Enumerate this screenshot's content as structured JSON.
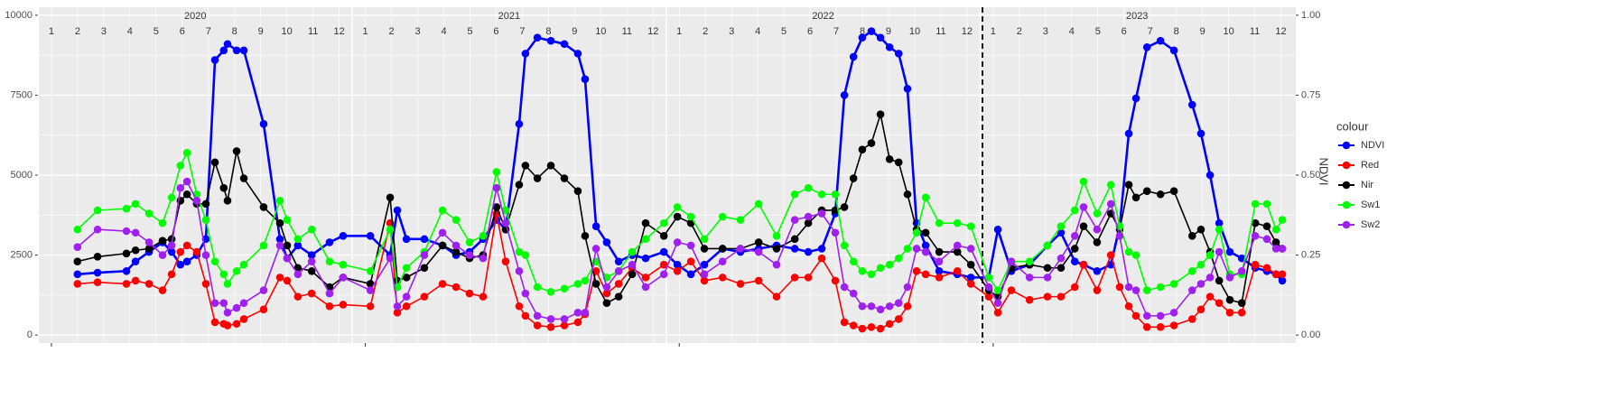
{
  "chart_data": {
    "type": "line",
    "x": [
      2020.083,
      2020.147,
      2020.239,
      2020.268,
      2020.311,
      2020.354,
      2020.383,
      2020.411,
      2020.432,
      2020.463,
      2020.492,
      2020.521,
      2020.549,
      2020.561,
      2020.59,
      2020.613,
      2020.676,
      2020.728,
      2020.751,
      2020.785,
      2020.829,
      2020.886,
      2020.929,
      2021.016,
      2021.079,
      2021.102,
      2021.131,
      2021.188,
      2021.246,
      2021.289,
      2021.332,
      2021.375,
      2021.418,
      2021.447,
      2021.49,
      2021.51,
      2021.548,
      2021.591,
      2021.634,
      2021.677,
      2021.7,
      2021.735,
      2021.769,
      2021.807,
      2021.85,
      2021.893,
      2021.951,
      2021.994,
      2022.037,
      2022.08,
      2022.138,
      2022.195,
      2022.253,
      2022.31,
      2022.368,
      2022.411,
      2022.454,
      2022.497,
      2022.526,
      2022.555,
      2022.583,
      2022.612,
      2022.641,
      2022.67,
      2022.699,
      2022.727,
      2022.756,
      2022.785,
      2022.828,
      2022.886,
      2022.929,
      2022.986,
      2023.015,
      2023.058,
      2023.116,
      2023.173,
      2023.216,
      2023.26,
      2023.288,
      2023.331,
      2023.375,
      2023.403,
      2023.432,
      2023.455,
      2023.49,
      2023.533,
      2023.576,
      2023.634,
      2023.662,
      2023.691,
      2023.72,
      2023.754,
      2023.792,
      2023.835,
      2023.872,
      2023.901,
      2023.921
    ],
    "series": [
      {
        "name": "NDVI",
        "color": "#0000ff",
        "axis": "y2",
        "values": [
          0.19,
          0.195,
          0.2,
          0.23,
          0.26,
          0.29,
          0.26,
          0.22,
          0.23,
          0.25,
          0.3,
          0.86,
          0.89,
          0.91,
          0.89,
          0.89,
          0.66,
          0.3,
          0.24,
          0.28,
          0.25,
          0.29,
          0.31,
          0.31,
          0.25,
          0.39,
          0.3,
          0.3,
          0.28,
          0.25,
          0.26,
          0.3,
          0.36,
          0.33,
          0.66,
          0.88,
          0.93,
          0.92,
          0.91,
          0.88,
          0.8,
          0.34,
          0.29,
          0.23,
          0.25,
          0.24,
          0.26,
          0.22,
          0.19,
          0.22,
          0.27,
          0.26,
          0.27,
          0.28,
          0.27,
          0.26,
          0.27,
          0.38,
          0.75,
          0.87,
          0.93,
          0.95,
          0.93,
          0.9,
          0.88,
          0.77,
          0.35,
          0.28,
          0.2,
          0.19,
          0.18,
          0.18,
          0.33,
          0.2,
          0.22,
          0.28,
          0.32,
          0.23,
          0.22,
          0.2,
          0.22,
          0.34,
          0.63,
          0.74,
          0.9,
          0.92,
          0.89,
          0.72,
          0.63,
          0.5,
          0.35,
          0.26,
          0.24,
          0.21,
          0.2,
          0.19,
          0.17
        ]
      },
      {
        "name": "Red",
        "color": "#ff0000",
        "values": [
          1600,
          1650,
          1600,
          1700,
          1600,
          1400,
          1900,
          2600,
          2800,
          2600,
          1600,
          400,
          350,
          300,
          350,
          500,
          800,
          1800,
          1700,
          1200,
          1300,
          900,
          950,
          900,
          3500,
          700,
          900,
          1200,
          1600,
          1500,
          1300,
          1200,
          3800,
          2300,
          900,
          600,
          300,
          250,
          300,
          400,
          650,
          2000,
          1300,
          1600,
          2100,
          1800,
          2200,
          2000,
          2300,
          1700,
          1800,
          1600,
          1700,
          1200,
          1800,
          1800,
          2400,
          1700,
          400,
          300,
          200,
          250,
          200,
          350,
          500,
          900,
          2000,
          1900,
          1800,
          2000,
          1600,
          1200,
          700,
          1400,
          1100,
          1200,
          1200,
          1500,
          2200,
          1400,
          2500,
          1500,
          900,
          600,
          250,
          250,
          300,
          500,
          800,
          1200,
          1000,
          700,
          700,
          2200,
          2100,
          1900,
          1900
        ]
      },
      {
        "name": "Nir",
        "color": "#000000",
        "values": [
          2300,
          2450,
          2550,
          2650,
          2700,
          2950,
          3000,
          4200,
          4400,
          4100,
          4100,
          5400,
          4600,
          4200,
          5750,
          4900,
          4000,
          3500,
          2800,
          2100,
          2000,
          1500,
          1800,
          1600,
          4300,
          1700,
          1800,
          2100,
          2800,
          2600,
          2400,
          2500,
          4000,
          3300,
          4700,
          5300,
          4900,
          5300,
          4900,
          4500,
          3100,
          1600,
          1000,
          1200,
          1900,
          3500,
          3100,
          3700,
          3500,
          2700,
          2700,
          2700,
          2900,
          2700,
          3000,
          3500,
          3900,
          3900,
          4000,
          4900,
          5800,
          6000,
          6900,
          5500,
          5400,
          4400,
          3300,
          3200,
          2600,
          2600,
          2200,
          1400,
          1200,
          2100,
          2200,
          2100,
          2100,
          2700,
          3400,
          2900,
          3800,
          3300,
          4700,
          4300,
          4500,
          4400,
          4500,
          3100,
          3300,
          2600,
          1700,
          1100,
          1000,
          3500,
          3400,
          2900,
          2700
        ]
      },
      {
        "name": "Sw1",
        "color": "#00ff00",
        "values": [
          3300,
          3900,
          3950,
          4100,
          3800,
          3500,
          4300,
          5300,
          5700,
          4400,
          3600,
          2300,
          1900,
          1600,
          2000,
          2200,
          2800,
          4200,
          3600,
          3000,
          3300,
          2300,
          2200,
          2000,
          3300,
          1500,
          2100,
          2600,
          3900,
          3600,
          2900,
          3100,
          5100,
          3900,
          2600,
          2500,
          1500,
          1350,
          1450,
          1600,
          1700,
          2300,
          1800,
          2000,
          2600,
          3000,
          3500,
          4000,
          3700,
          3000,
          3700,
          3600,
          4100,
          3100,
          4400,
          4600,
          4400,
          4400,
          2800,
          2300,
          2000,
          1900,
          2100,
          2200,
          2400,
          2700,
          3200,
          4300,
          3500,
          3500,
          3400,
          1800,
          1400,
          2300,
          2300,
          2800,
          3400,
          3900,
          4800,
          3800,
          4700,
          3400,
          2600,
          2500,
          1400,
          1500,
          1600,
          2000,
          2200,
          2500,
          3300,
          1900,
          1900,
          4100,
          4100,
          3300,
          3600
        ]
      },
      {
        "name": "Sw2",
        "color": "#a020f0",
        "values": [
          2750,
          3300,
          3250,
          3200,
          2900,
          2500,
          2800,
          4600,
          4800,
          4200,
          2500,
          1000,
          1000,
          700,
          850,
          1000,
          1400,
          2800,
          2400,
          1900,
          2300,
          1300,
          1800,
          1400,
          2400,
          900,
          1200,
          2500,
          3200,
          2800,
          2500,
          2400,
          4600,
          3500,
          2000,
          1300,
          600,
          500,
          500,
          700,
          700,
          2700,
          1500,
          2000,
          2200,
          1500,
          1900,
          2900,
          2800,
          1900,
          2300,
          2700,
          2600,
          2200,
          3600,
          3700,
          3800,
          3200,
          1500,
          1300,
          900,
          900,
          800,
          900,
          1000,
          1500,
          2700,
          2600,
          2300,
          2800,
          2700,
          1500,
          1000,
          2300,
          1800,
          1800,
          2400,
          3100,
          4000,
          3300,
          4100,
          3100,
          1500,
          1400,
          600,
          600,
          700,
          1400,
          1600,
          1800,
          2600,
          1800,
          2000,
          3100,
          3000,
          2700,
          2700
        ]
      }
    ],
    "xlim": [
      2019.957,
      2023.964
    ],
    "xticks": [
      2020,
      2021,
      2022,
      2023
    ],
    "months": [
      1,
      2,
      3,
      4,
      5,
      6,
      7,
      8,
      9,
      10,
      11,
      12
    ],
    "ylim": [
      -250,
      10250
    ],
    "yticks": [
      0,
      2500,
      5000,
      7500,
      10000
    ],
    "y2lim": [
      -0.025,
      1.025
    ],
    "y2ticks": [
      {
        "value": 0,
        "label": "0.00"
      },
      {
        "value": 0.25,
        "label": "0.25"
      },
      {
        "value": 0.5,
        "label": "0.50"
      },
      {
        "value": 0.75,
        "label": "0.75"
      },
      {
        "value": 1,
        "label": "1.00"
      }
    ],
    "y2label": "NDVI",
    "vline": 2022.966,
    "legend_title": "colour",
    "legend": "right",
    "grid": true
  }
}
